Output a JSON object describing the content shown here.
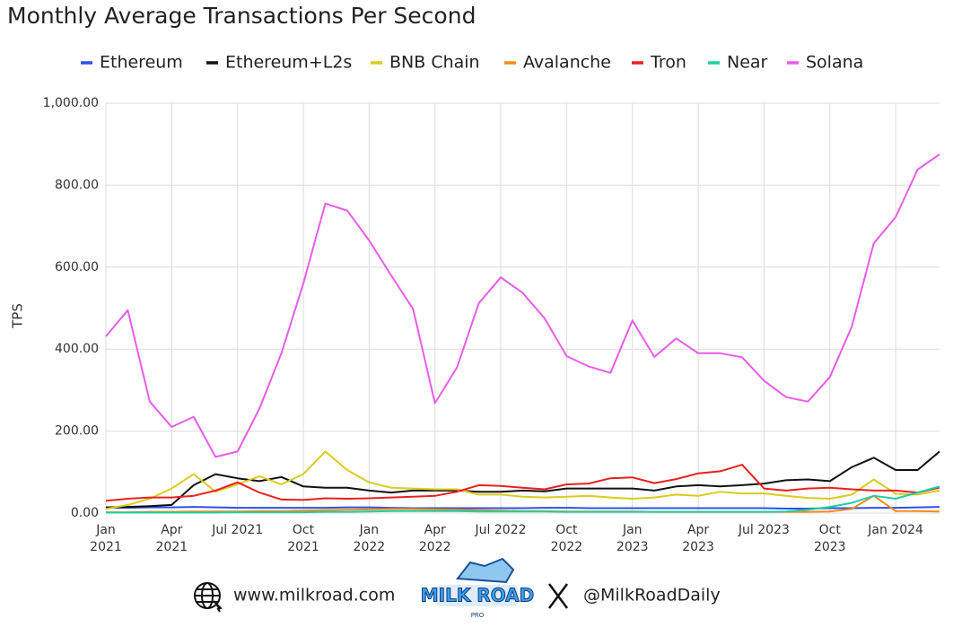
{
  "chart_data": {
    "type": "line",
    "title": "Monthly Average Transactions Per Second",
    "y_label": "TPS",
    "categories": [
      "Jan\n2021",
      null,
      null,
      "Apr\n2021",
      null,
      null,
      "Jul 2021",
      null,
      null,
      "Oct\n2021",
      null,
      null,
      "Jan\n2022",
      null,
      null,
      "Apr\n2022",
      null,
      null,
      "Jul 2022",
      null,
      null,
      "Oct\n2022",
      null,
      null,
      "Jan\n2023",
      null,
      null,
      "Apr\n2023",
      null,
      null,
      "Jul 2023",
      null,
      null,
      "Oct\n2023",
      null,
      null,
      "Jan 2024",
      null,
      null
    ],
    "ylim": [
      0,
      1000
    ],
    "yticks": [
      {
        "value": 0,
        "label": "0.00"
      },
      {
        "value": 200,
        "label": "200.00"
      },
      {
        "value": 400,
        "label": "400.00"
      },
      {
        "value": 600,
        "label": "600.00"
      },
      {
        "value": 800,
        "label": "800.00"
      },
      {
        "value": 1000,
        "label": "1,000.00"
      }
    ],
    "grid": true,
    "legend": "top",
    "series": [
      {
        "name": "Ethereum",
        "color": "#2f4fe8",
        "values": [
          13,
          13,
          14,
          14,
          15,
          14,
          13,
          13,
          13,
          13,
          13,
          14,
          14,
          13,
          12,
          12,
          12,
          12,
          12,
          12,
          13,
          13,
          12,
          12,
          12,
          12,
          12,
          12,
          12,
          12,
          12,
          11,
          11,
          12,
          12,
          13,
          13,
          14,
          15
        ]
      },
      {
        "name": "Ethereum+L2s",
        "color": "#111111",
        "values": [
          14,
          15,
          17,
          20,
          68,
          95,
          85,
          78,
          88,
          65,
          62,
          62,
          55,
          50,
          55,
          55,
          55,
          52,
          52,
          55,
          53,
          60,
          60,
          60,
          60,
          55,
          65,
          68,
          65,
          68,
          72,
          80,
          82,
          78,
          112,
          135,
          105,
          105,
          150
        ]
      },
      {
        "name": "BNB Chain",
        "color": "#d9cc1c",
        "values": [
          10,
          20,
          35,
          60,
          95,
          52,
          70,
          90,
          70,
          95,
          150,
          105,
          75,
          62,
          60,
          58,
          58,
          45,
          45,
          40,
          38,
          40,
          42,
          38,
          35,
          38,
          45,
          42,
          52,
          48,
          48,
          42,
          37,
          35,
          45,
          82,
          47,
          45,
          55
        ]
      },
      {
        "name": "Avalanche",
        "color": "#f28c1a",
        "values": [
          2,
          2,
          3,
          3,
          4,
          4,
          4,
          5,
          5,
          6,
          7,
          8,
          9,
          10,
          10,
          9,
          8,
          7,
          6,
          5,
          5,
          4,
          4,
          4,
          4,
          3,
          3,
          3,
          3,
          3,
          3,
          3,
          3,
          4,
          10,
          42,
          5,
          5,
          4
        ]
      },
      {
        "name": "Tron",
        "color": "#e82020",
        "values": [
          30,
          35,
          38,
          38,
          42,
          55,
          75,
          50,
          33,
          32,
          36,
          35,
          36,
          38,
          40,
          42,
          52,
          68,
          66,
          62,
          58,
          70,
          72,
          85,
          87,
          73,
          83,
          97,
          102,
          118,
          60,
          55,
          60,
          62,
          58,
          55,
          55,
          50,
          62
        ]
      },
      {
        "name": "Near",
        "color": "#1fcfa0",
        "values": [
          1,
          1,
          1,
          1,
          1,
          1,
          2,
          2,
          2,
          2,
          3,
          3,
          4,
          5,
          5,
          5,
          5,
          4,
          4,
          4,
          4,
          3,
          3,
          3,
          3,
          3,
          3,
          3,
          3,
          3,
          3,
          4,
          8,
          15,
          25,
          42,
          35,
          50,
          65
        ]
      },
      {
        "name": "Solana",
        "color": "#e85ce8",
        "values": [
          431,
          495,
          272,
          210,
          235,
          137,
          150,
          255,
          390,
          560,
          755,
          738,
          665,
          580,
          498,
          268,
          355,
          512,
          575,
          537,
          475,
          383,
          358,
          342,
          470,
          381,
          426,
          390,
          390,
          380,
          323,
          283,
          272,
          332,
          455,
          658,
          722,
          838,
          875
        ]
      }
    ]
  },
  "footer": {
    "website": "www.milkroad.com",
    "logo": "MILK ROAD",
    "logo_sub": "PRO",
    "handle": "@MilkRoadDaily"
  }
}
